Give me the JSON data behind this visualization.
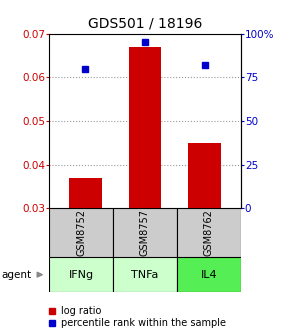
{
  "title": "GDS501 / 18196",
  "samples": [
    "GSM8752",
    "GSM8757",
    "GSM8762"
  ],
  "agents": [
    "IFNg",
    "TNFa",
    "IL4"
  ],
  "log_ratio": [
    0.037,
    0.067,
    0.045
  ],
  "percentile": [
    80,
    95,
    82
  ],
  "ylim_left": [
    0.03,
    0.07
  ],
  "ylim_right": [
    0,
    100
  ],
  "yticks_left": [
    0.03,
    0.04,
    0.05,
    0.06,
    0.07
  ],
  "yticks_right": [
    0,
    25,
    50,
    75,
    100
  ],
  "ytick_labels_right": [
    "0",
    "25",
    "50",
    "75",
    "100%"
  ],
  "bar_color": "#cc0000",
  "dot_color": "#0000cc",
  "bar_baseline": 0.03,
  "sample_box_color": "#cccccc",
  "agent_box_colors": [
    "#ccffcc",
    "#ccffcc",
    "#55ee55"
  ],
  "legend_log": "log ratio",
  "legend_pct": "percentile rank within the sample",
  "grid_color": "#999999",
  "title_fontsize": 10,
  "axis_fontsize": 7.5,
  "label_fontsize": 7.5,
  "tick_label_fontsize": 7.5
}
